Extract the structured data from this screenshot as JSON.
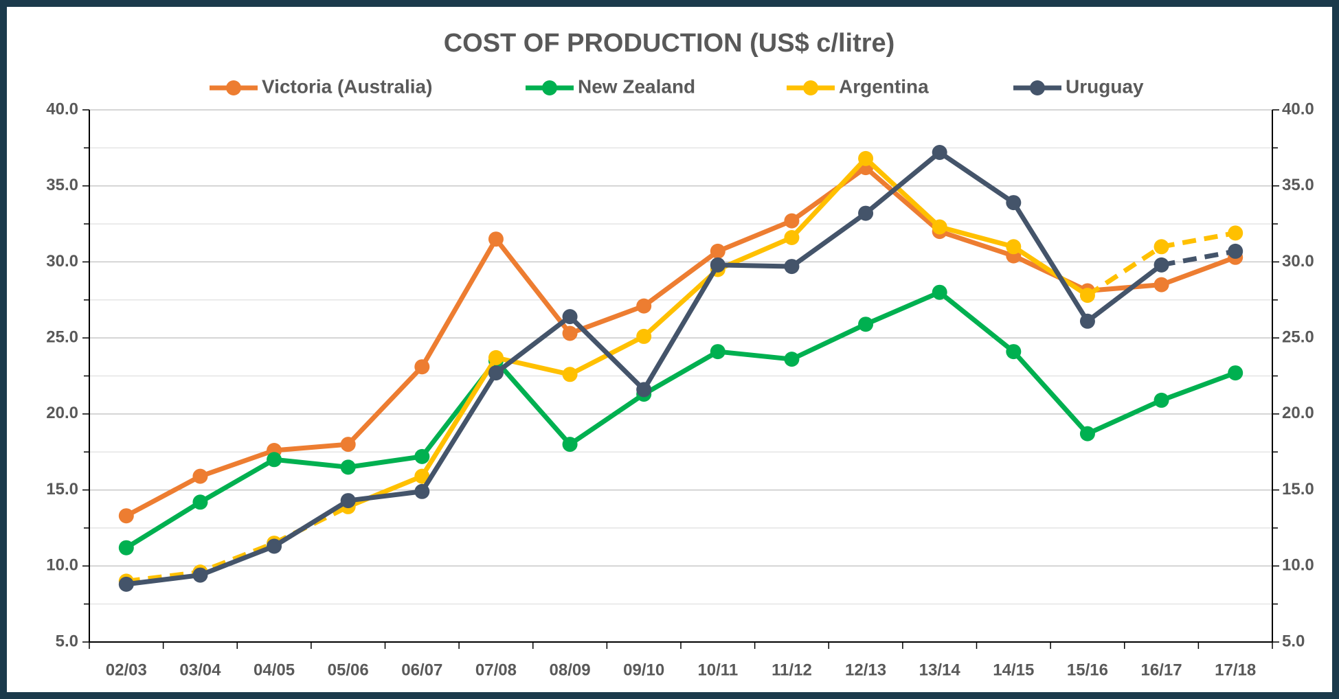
{
  "chart_data": {
    "type": "line",
    "title": "COST OF PRODUCTION (US$ c/litre)",
    "categories": [
      "02/03",
      "03/04",
      "04/05",
      "05/06",
      "06/07",
      "07/08",
      "08/09",
      "09/10",
      "10/11",
      "11/12",
      "12/13",
      "13/14",
      "14/15",
      "15/16",
      "16/17",
      "17/18"
    ],
    "series": [
      {
        "name": "Victoria (Australia)",
        "color": "#ed7d31",
        "values": [
          13.3,
          15.9,
          17.6,
          18.0,
          23.1,
          31.5,
          25.3,
          27.1,
          30.7,
          32.7,
          36.2,
          32.0,
          30.4,
          28.1,
          28.5,
          30.3
        ]
      },
      {
        "name": "New Zealand",
        "color": "#00b050",
        "values": [
          11.2,
          14.2,
          17.0,
          16.5,
          17.2,
          23.5,
          18.0,
          21.3,
          24.1,
          23.6,
          25.9,
          28.0,
          24.1,
          18.7,
          20.9,
          22.7
        ]
      },
      {
        "name": "Argentina",
        "color": "#ffc000",
        "values": [
          9.0,
          9.6,
          11.5,
          13.9,
          15.9,
          23.7,
          22.6,
          25.1,
          29.5,
          31.6,
          36.8,
          32.3,
          31.0,
          27.8,
          31.0,
          31.9
        ],
        "dashed": [
          [
            0,
            3
          ],
          [
            13,
            15
          ]
        ]
      },
      {
        "name": "Uruguay",
        "color": "#44546a",
        "values": [
          8.8,
          9.4,
          11.3,
          14.3,
          14.9,
          22.7,
          26.4,
          21.6,
          29.8,
          29.7,
          33.2,
          37.2,
          33.9,
          26.1,
          29.8,
          30.7
        ],
        "dashed": [
          [
            14,
            15
          ]
        ]
      }
    ],
    "ylim": [
      5,
      40
    ],
    "yticks": [
      {
        "value": 5,
        "label": "5.0"
      },
      {
        "value": 10,
        "label": "10.0"
      },
      {
        "value": 15,
        "label": "15.0"
      },
      {
        "value": 20,
        "label": "20.0"
      },
      {
        "value": 25,
        "label": "25.0"
      },
      {
        "value": 30,
        "label": "30.0"
      },
      {
        "value": 35,
        "label": "35.0"
      },
      {
        "value": 40,
        "label": "40.0"
      }
    ],
    "yminor": [
      7.5,
      12.5,
      17.5,
      22.5,
      27.5,
      32.5,
      37.5
    ],
    "y2lim": [
      5,
      40
    ],
    "y2ticks": [
      {
        "value": 5,
        "label": "5.0"
      },
      {
        "value": 10,
        "label": "10.0"
      },
      {
        "value": 15,
        "label": "15.0"
      },
      {
        "value": 20,
        "label": "20.0"
      },
      {
        "value": 25,
        "label": "25.0"
      },
      {
        "value": 30,
        "label": "30.0"
      },
      {
        "value": 35,
        "label": "35.0"
      },
      {
        "value": 40,
        "label": "40.0"
      }
    ],
    "grid": true,
    "legend": "top"
  }
}
